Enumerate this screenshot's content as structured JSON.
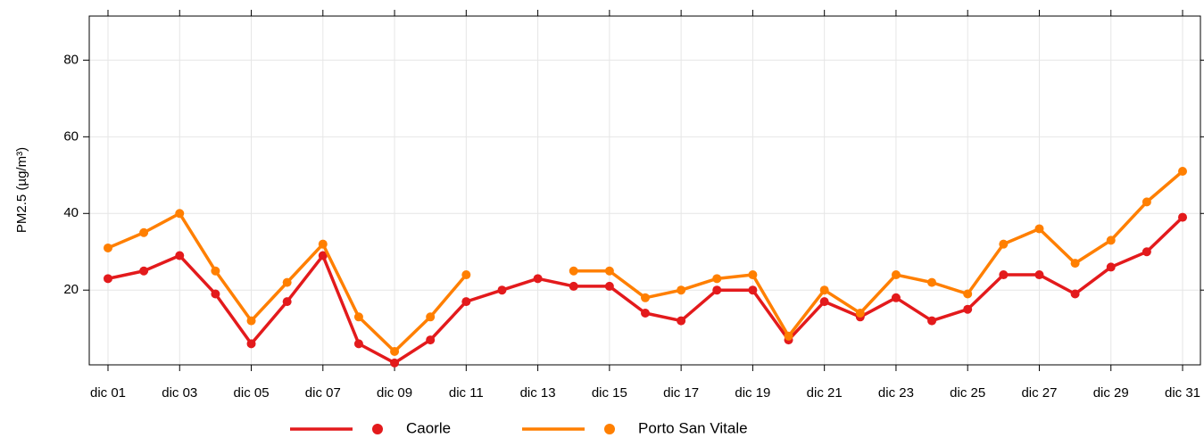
{
  "chart_data": {
    "type": "line",
    "y_label": "PM2.5 (µg/m³)",
    "categories": [
      "dic 01",
      null,
      "dic 03",
      null,
      "dic 05",
      null,
      "dic 07",
      null,
      "dic 09",
      null,
      "dic 11",
      null,
      "dic 13",
      null,
      "dic 15",
      null,
      "dic 17",
      null,
      "dic 19",
      null,
      "dic 21",
      null,
      "dic 23",
      null,
      "dic 25",
      null,
      "dic 27",
      null,
      "dic 29",
      null,
      "dic 31"
    ],
    "series": [
      {
        "name": "Caorle",
        "color": "#e31a1c",
        "values": [
          23,
          25,
          29,
          19,
          6,
          17,
          29,
          6,
          1,
          7,
          17,
          20,
          23,
          21,
          21,
          14,
          12,
          20,
          20,
          7,
          17,
          13,
          18,
          12,
          15,
          24,
          24,
          19,
          26,
          30,
          39
        ]
      },
      {
        "name": "Porto San Vitale",
        "color": "#ff7f00",
        "values": [
          31,
          35,
          40,
          25,
          12,
          22,
          32,
          13,
          4,
          13,
          24,
          null,
          null,
          25,
          25,
          18,
          20,
          23,
          24,
          8,
          20,
          14,
          24,
          22,
          19,
          32,
          36,
          27,
          33,
          43,
          51
        ]
      }
    ],
    "ylim": [
      0.5,
      91.5
    ],
    "yticks": [
      20,
      40,
      60,
      80
    ],
    "grid": true,
    "legend": "bottom"
  }
}
